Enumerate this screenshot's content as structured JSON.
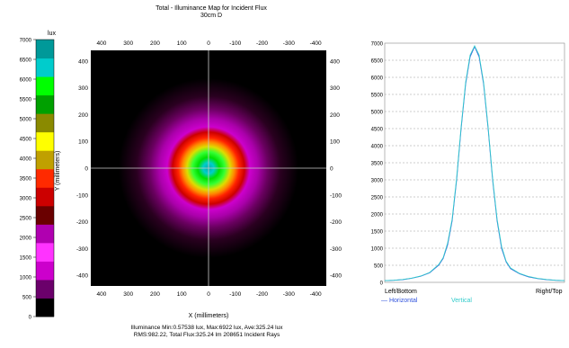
{
  "title_line1": "Total - Illuminance Map for Incident Flux",
  "title_line2": "30cm D",
  "colorbar": {
    "unit": "lux",
    "ticks": [
      0,
      500,
      1000,
      1500,
      2000,
      2500,
      3000,
      3500,
      4000,
      4500,
      5000,
      5500,
      6000,
      6500,
      7000
    ],
    "colors": [
      "#000000",
      "#6b006b",
      "#cc00cc",
      "#ff33ff",
      "#b000b0",
      "#6a0000",
      "#cc0000",
      "#ff2a00",
      "#c0a000",
      "#ffff00",
      "#8a8a00",
      "#00a000",
      "#00ff00",
      "#00cccc",
      "#009999"
    ]
  },
  "map": {
    "y_axis_label": "Y (millimeters)",
    "x_axis_label": "X (millimeters)",
    "x_ticks_top": [
      "400",
      "300",
      "200",
      "100",
      "0",
      "-100",
      "-200",
      "-300",
      "-400"
    ],
    "x_ticks_bottom": [
      "400",
      "300",
      "200",
      "100",
      "0",
      "-100",
      "-200",
      "-300",
      "-400"
    ],
    "y_ticks_left": [
      "400",
      "300",
      "200",
      "100",
      "0",
      "-100",
      "-200",
      "-300",
      "-400"
    ],
    "y_ticks_right": [
      "400",
      "300",
      "200",
      "100",
      "0",
      "-100",
      "-200",
      "-300",
      "-400"
    ]
  },
  "stats": {
    "line1": "Illuminance Min:0.57538 lux, Max:6922 lux, Ave:325.24 lux",
    "line2": "RMS:982.22, Total Flux:325.24 lm 208651 Incident Rays"
  },
  "profile": {
    "left_label": "Left/Bottom",
    "right_label": "Right/Top",
    "legend_horizontal": "Horizontal",
    "legend_vertical": "Vertical",
    "horizontal_color": "#3355dd",
    "vertical_color": "#33cccc"
  },
  "chart_data": {
    "type": "line",
    "title": "Total - Illuminance Map for Incident Flux",
    "subtitle": "30cm D",
    "xlabel": "",
    "ylabel": "",
    "ylim": [
      0,
      7000
    ],
    "y_ticks": [
      0,
      500,
      1000,
      1500,
      2000,
      2500,
      3000,
      3500,
      4000,
      4500,
      5000,
      5500,
      6000,
      6500,
      7000
    ],
    "grid": true,
    "x": [
      -1.0,
      -0.9,
      -0.8,
      -0.7,
      -0.6,
      -0.5,
      -0.4,
      -0.35,
      -0.3,
      -0.25,
      -0.2,
      -0.15,
      -0.1,
      -0.05,
      0.0,
      0.05,
      0.1,
      0.15,
      0.2,
      0.25,
      0.3,
      0.35,
      0.4,
      0.5,
      0.6,
      0.7,
      0.8,
      0.9,
      1.0
    ],
    "series": [
      {
        "name": "Horizontal",
        "values": [
          50,
          60,
          80,
          120,
          180,
          280,
          500,
          700,
          1100,
          1800,
          3000,
          4500,
          5800,
          6600,
          6900,
          6600,
          5800,
          4500,
          3000,
          1800,
          1000,
          600,
          400,
          250,
          160,
          110,
          80,
          60,
          50
        ]
      },
      {
        "name": "Vertical",
        "values": [
          50,
          60,
          85,
          125,
          185,
          290,
          520,
          720,
          1150,
          1850,
          3050,
          4550,
          5850,
          6650,
          6920,
          6650,
          5850,
          4550,
          3050,
          1850,
          1050,
          620,
          420,
          260,
          170,
          115,
          85,
          60,
          50
        ]
      }
    ]
  }
}
